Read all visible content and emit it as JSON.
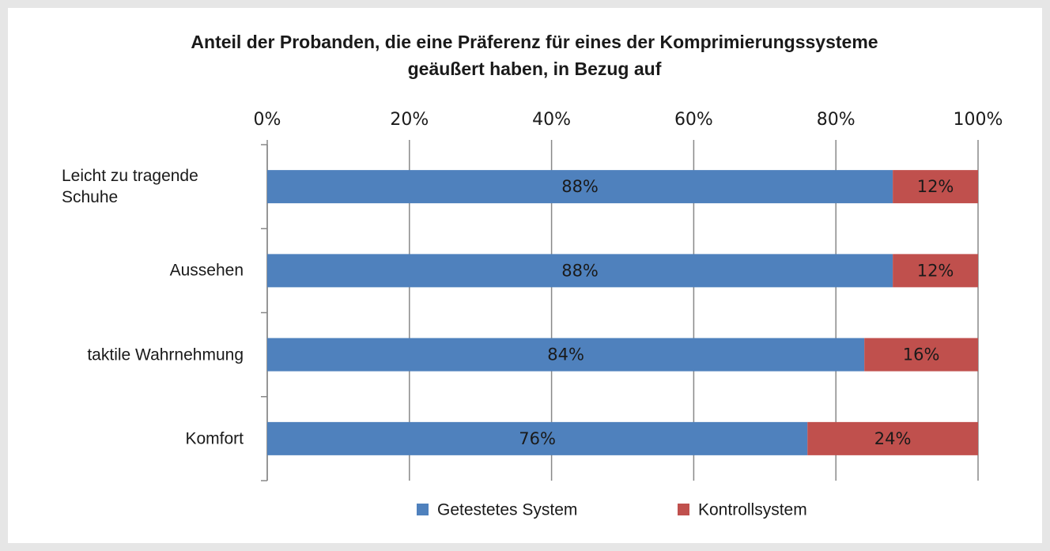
{
  "chart_data": {
    "type": "stacked-bar-horizontal",
    "title": "Anteil der Probanden, die eine Präferenz für eines der Komprimierungssysteme",
    "subtitle": "geäußert haben, in Bezug auf",
    "categories": [
      "Leicht zu tragende Schuhe",
      "Aussehen",
      "taktile Wahrnehmung",
      "Komfort"
    ],
    "series": [
      {
        "name": "Getestetes System",
        "color": "#4f81bd",
        "values": [
          88,
          88,
          84,
          76
        ],
        "value_labels": [
          "88%",
          "88%",
          "84%",
          "76%"
        ]
      },
      {
        "name": "Kontrollsystem",
        "color": "#c0504d",
        "values": [
          12,
          12,
          16,
          24
        ],
        "value_labels": [
          "12%",
          "12%",
          "16%",
          "24%"
        ]
      }
    ],
    "xlim": [
      0,
      100
    ],
    "xticks": [
      {
        "value": 0,
        "label": "0%"
      },
      {
        "value": 20,
        "label": "20%"
      },
      {
        "value": 40,
        "label": "40%"
      },
      {
        "value": 60,
        "label": "60%"
      },
      {
        "value": 80,
        "label": "80%"
      },
      {
        "value": 100,
        "label": "100%"
      }
    ],
    "grid": true
  }
}
